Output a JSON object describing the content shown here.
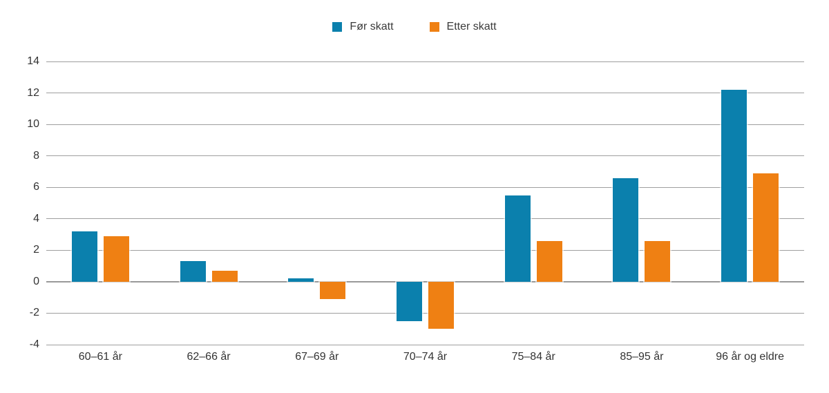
{
  "figure": {
    "background": "#ffffff",
    "text_color": "#333333",
    "gridline_color": "#9e9e9e",
    "zero_line_color": "#999999"
  },
  "chart_data": {
    "type": "bar",
    "title": "",
    "xlabel": "",
    "ylabel": "",
    "categories": [
      "60–61 år",
      "62–66 år",
      "67–69 år",
      "70–74 år",
      "75–84 år",
      "85–95 år",
      "96 år og eldre"
    ],
    "series": [
      {
        "name": "Før skatt",
        "color": "#0b80ad",
        "values": [
          3.2,
          1.3,
          0.2,
          -2.5,
          5.5,
          6.6,
          12.2
        ]
      },
      {
        "name": "Etter skatt",
        "color": "#ef8013",
        "values": [
          2.9,
          0.7,
          -1.1,
          -3.0,
          2.6,
          2.6,
          6.9
        ]
      }
    ],
    "ylim": [
      -4,
      14
    ],
    "yticks": [
      14,
      12,
      10,
      8,
      6,
      4,
      2,
      0,
      -2,
      -4
    ],
    "grid": "horizontal",
    "legend_position": "top-center"
  }
}
